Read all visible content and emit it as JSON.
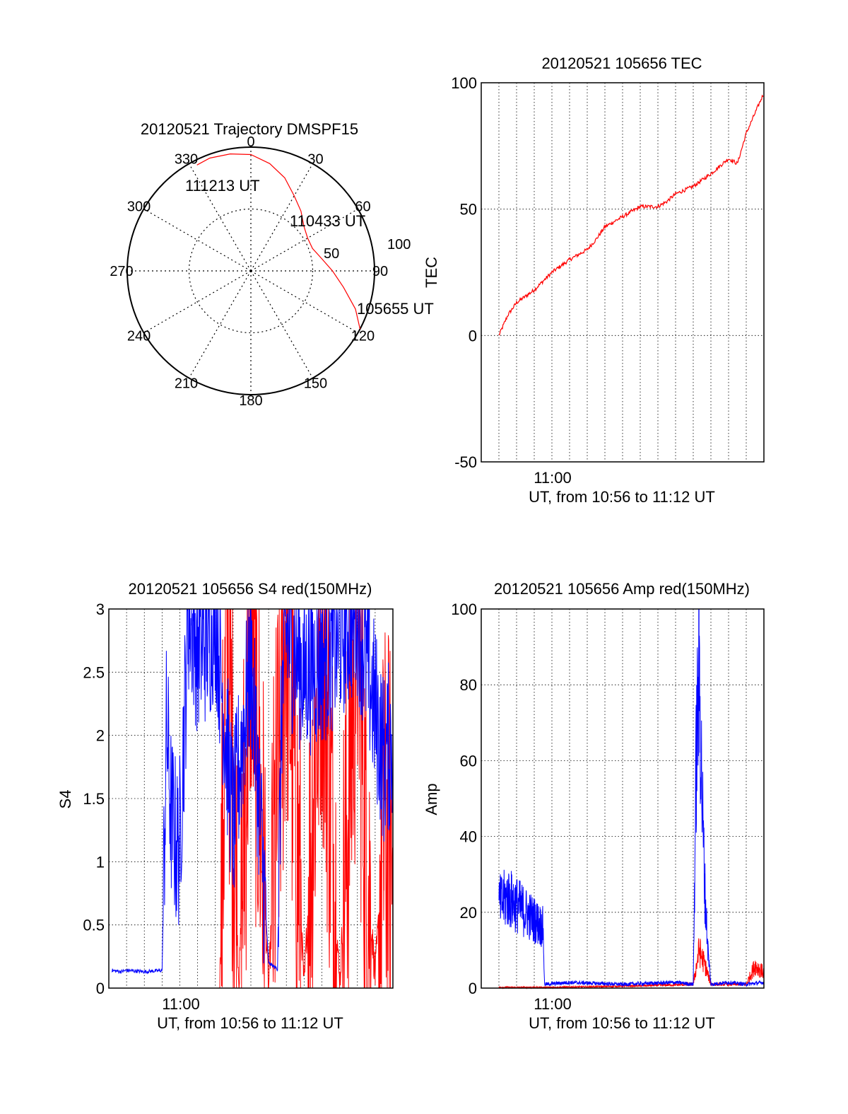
{
  "chart_data": [
    {
      "id": "trajectory",
      "type": "polar",
      "title": "20120521 Trajectory DMSPF15",
      "azimuth_labels": [
        "0",
        "30",
        "60",
        "90",
        "120",
        "150",
        "180",
        "210",
        "240",
        "270",
        "300",
        "330"
      ],
      "radial_labels": [
        "50",
        "100"
      ],
      "rlim": [
        0,
        100
      ],
      "series": [
        {
          "color": "#ff0000",
          "points": [
            [
              118,
              100
            ],
            [
              110,
              90
            ],
            [
              100,
              76
            ],
            [
              90,
              66
            ],
            [
              80,
              58
            ],
            [
              70,
              53
            ],
            [
              60,
              53
            ],
            [
              50,
              56
            ],
            [
              40,
              63
            ],
            [
              30,
              70
            ],
            [
              20,
              80
            ],
            [
              10,
              88
            ],
            [
              0,
              94
            ],
            [
              350,
              96
            ],
            [
              340,
              97
            ],
            [
              333,
              96
            ]
          ]
        }
      ],
      "annotations": [
        {
          "text": "111213 UT",
          "az": 333,
          "r": 96
        },
        {
          "text": "110433 UT",
          "az": 55,
          "r": 56
        },
        {
          "text": "105655 UT",
          "az": 118,
          "r": 100
        }
      ]
    },
    {
      "id": "tec",
      "type": "line",
      "title": "20120521 105656 TEC",
      "xlabel": "UT, from 10:56 to 11:12 UT",
      "ylabel": "TEC",
      "xlim": [
        "10:56",
        "11:12"
      ],
      "ylim": [
        -50,
        100
      ],
      "yticks": [
        "-50",
        "0",
        "50",
        "100"
      ],
      "xticks": [
        "11:00"
      ],
      "grid": true,
      "series": [
        {
          "color": "#ff0000",
          "x": [
            "10:57",
            "10:57:30",
            "10:58",
            "10:59",
            "11:00",
            "11:01",
            "11:02",
            "11:02:30",
            "11:03",
            "11:04",
            "11:05",
            "11:06",
            "11:06:30",
            "11:07",
            "11:08",
            "11:09",
            "11:10",
            "11:10:30",
            "11:11",
            "11:11:30",
            "11:12"
          ],
          "y": [
            0,
            8,
            13,
            18,
            25,
            30,
            34,
            38,
            43,
            47,
            51,
            51,
            53,
            56,
            59,
            64,
            70,
            68,
            80,
            88,
            96
          ]
        }
      ]
    },
    {
      "id": "s4",
      "type": "line",
      "title": "20120521 105656 S4 red(150MHz)",
      "xlabel": "UT, from 10:56 to 11:12 UT",
      "ylabel": "S4",
      "xlim": [
        "10:56",
        "11:12"
      ],
      "ylim": [
        0,
        3
      ],
      "yticks": [
        "0",
        "0.5",
        "1",
        "1.5",
        "2",
        "2.5",
        "3"
      ],
      "xticks": [
        "11:00"
      ],
      "grid": true,
      "series": [
        {
          "color": "#ff0000",
          "x": [
            "11:02:15",
            "11:02:40",
            "11:03:20",
            "11:04",
            "11:05",
            "11:06",
            "11:07",
            "11:08",
            "11:09",
            "11:10",
            "11:10:30",
            "11:11",
            "11:11:30",
            "11:12"
          ],
          "y": [
            0,
            3,
            0,
            3,
            0,
            3,
            0,
            3,
            0,
            3,
            1,
            0.1,
            1.2,
            1.1
          ]
        },
        {
          "color": "#0000ff",
          "x": [
            "10:56:10",
            "10:56:40",
            "10:57",
            "10:58",
            "10:59",
            "10:59:15",
            "10:59:30",
            "10:59:50",
            "11:00",
            "11:00:30",
            "11:01",
            "11:01:40",
            "11:02",
            "11:03",
            "11:04",
            "11:05",
            "11:05:30",
            "11:05:45",
            "11:06",
            "11:07",
            "11:08",
            "11:09",
            "11:10",
            "11:11",
            "11:11:30",
            "11:12"
          ],
          "y": [
            0.14,
            0.13,
            0.14,
            0.13,
            0.14,
            2.1,
            1.4,
            1.1,
            1.2,
            3,
            2.7,
            2.8,
            3,
            1.3,
            2.6,
            0.2,
            0.15,
            2.3,
            2.8,
            2.5,
            2.6,
            2.8,
            3,
            2.2,
            1.8,
            2.0
          ]
        }
      ]
    },
    {
      "id": "amp",
      "type": "line",
      "title": "20120521 105656 Amp red(150MHz)",
      "xlabel": "UT, from 10:56 to 11:12 UT",
      "ylabel": "Amp",
      "xlim": [
        "10:56",
        "11:12"
      ],
      "ylim": [
        0,
        100
      ],
      "yticks": [
        "0",
        "20",
        "40",
        "60",
        "80",
        "100"
      ],
      "xticks": [
        "11:00"
      ],
      "grid": true,
      "series": [
        {
          "color": "#ff0000",
          "x": [
            "10:57",
            "11:00",
            "11:04",
            "11:08",
            "11:08:20",
            "11:08:40",
            "11:09",
            "11:10",
            "11:11",
            "11:11:30",
            "11:12"
          ],
          "y": [
            0.2,
            0.2,
            0.5,
            1,
            10,
            6,
            1,
            1,
            1,
            6,
            4
          ]
        },
        {
          "color": "#0000ff",
          "x": [
            "10:57",
            "10:57:30",
            "10:58",
            "10:58:30",
            "10:59",
            "10:59:30",
            "10:59:35",
            "11:01",
            "11:04",
            "11:07",
            "11:08",
            "11:08:10",
            "11:08:20",
            "11:08:30",
            "11:08:40",
            "11:08:50",
            "11:09",
            "11:10",
            "11:11",
            "11:12"
          ],
          "y": [
            22,
            24,
            22,
            20,
            18,
            16,
            1,
            1.5,
            1,
            1.5,
            1,
            60,
            85,
            50,
            25,
            10,
            1,
            1.5,
            1,
            1.5
          ]
        }
      ]
    }
  ]
}
